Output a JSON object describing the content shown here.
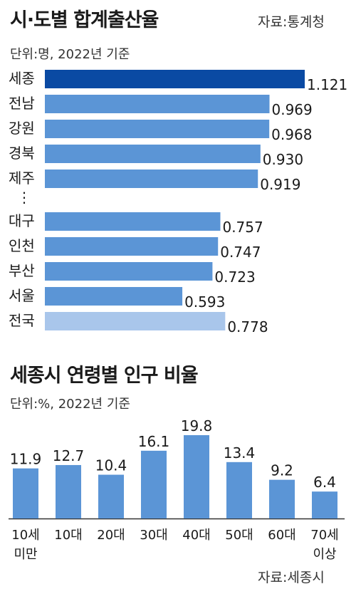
{
  "chart_data": [
    {
      "type": "bar",
      "orientation": "horizontal",
      "title": "시·도별 합계출산율",
      "source": "자료:통계청",
      "unit": "단위:명, 2022년 기준",
      "categories": [
        "세종",
        "전남",
        "강원",
        "경북",
        "제주",
        "대구",
        "인천",
        "부산",
        "서울",
        "전국"
      ],
      "values": [
        1.121,
        0.969,
        0.968,
        0.93,
        0.919,
        0.757,
        0.747,
        0.723,
        0.593,
        0.778
      ],
      "value_labels": [
        "1.121",
        "0.969",
        "0.968",
        "0.930",
        "0.919",
        "0.757",
        "0.747",
        "0.723",
        "0.593",
        "0.778"
      ],
      "gap_marker": "⋮",
      "colors": {
        "highlight": "#0a4aa3",
        "normal": "#5b95d6",
        "national": "#a9c6eb"
      }
    },
    {
      "type": "bar",
      "orientation": "vertical",
      "title": "세종시 연령별 인구 비율",
      "source": "자료:세종시",
      "unit": "단위:%, 2022년 기준",
      "categories": [
        "10세\n미만",
        "10대",
        "20대",
        "30대",
        "40대",
        "50대",
        "60대",
        "70세\n이상"
      ],
      "values": [
        11.9,
        12.7,
        10.4,
        16.1,
        19.8,
        13.4,
        9.2,
        6.4
      ],
      "value_labels": [
        "11.9",
        "12.7",
        "10.4",
        "16.1",
        "19.8",
        "13.4",
        "9.2",
        "6.4"
      ],
      "colors": {
        "bar": "#5b95d6",
        "axis": "#333333"
      }
    }
  ]
}
